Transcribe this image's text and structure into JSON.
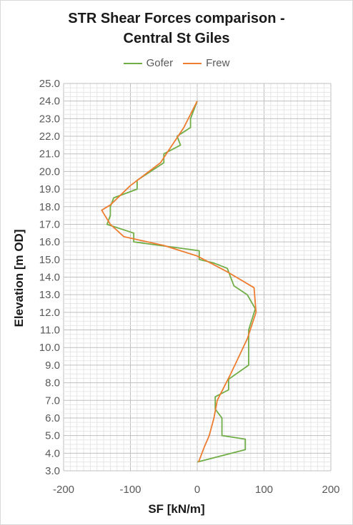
{
  "chart_data": {
    "type": "line",
    "title_line1": "STR Shear Forces comparison -",
    "title_line2": "Central St Giles",
    "xlabel": "SF [kN/m]",
    "ylabel": "Elevation [m OD]",
    "xlim": [
      -200,
      200
    ],
    "ylim": [
      3.0,
      25.0
    ],
    "x_ticks": [
      "-200",
      "-100",
      "0",
      "100",
      "200"
    ],
    "y_ticks": [
      "3.0",
      "4.0",
      "5.0",
      "6.0",
      "7.0",
      "8.0",
      "9.0",
      "10.0",
      "11.0",
      "12.0",
      "13.0",
      "14.0",
      "15.0",
      "16.0",
      "17.0",
      "18.0",
      "19.0",
      "20.0",
      "21.0",
      "22.0",
      "23.0",
      "24.0",
      "25.0"
    ],
    "grid": true,
    "legend_position": "top",
    "series": [
      {
        "name": "Gofer",
        "color": "#70ad47",
        "points": [
          [
            0,
            24.0
          ],
          [
            -10,
            23.0
          ],
          [
            -10,
            22.5
          ],
          [
            -30,
            22.0
          ],
          [
            -25,
            21.5
          ],
          [
            -50,
            21.0
          ],
          [
            -50,
            20.5
          ],
          [
            -90,
            19.5
          ],
          [
            -90,
            19.0
          ],
          [
            -125,
            18.5
          ],
          [
            -130,
            18.0
          ],
          [
            -130,
            17.5
          ],
          [
            -135,
            17.0
          ],
          [
            -95,
            16.5
          ],
          [
            -95,
            16.0
          ],
          [
            3,
            15.5
          ],
          [
            3,
            15.0
          ],
          [
            25,
            14.8
          ],
          [
            45,
            14.5
          ],
          [
            55,
            13.5
          ],
          [
            75,
            13.0
          ],
          [
            87,
            12.2
          ],
          [
            77,
            11.0
          ],
          [
            77,
            9.0
          ],
          [
            47,
            8.2
          ],
          [
            47,
            7.6
          ],
          [
            27,
            7.2
          ],
          [
            27,
            6.5
          ],
          [
            37,
            6.0
          ],
          [
            37,
            5.0
          ],
          [
            72,
            4.8
          ],
          [
            72,
            4.2
          ],
          [
            0,
            3.5
          ]
        ]
      },
      {
        "name": "Frew",
        "color": "#ed7d31",
        "points": [
          [
            0,
            24.0
          ],
          [
            -20,
            22.5
          ],
          [
            -55,
            20.5
          ],
          [
            -100,
            19.2
          ],
          [
            -130,
            18.1
          ],
          [
            -143,
            17.8
          ],
          [
            -130,
            17.0
          ],
          [
            -110,
            16.3
          ],
          [
            -50,
            15.8
          ],
          [
            0,
            15.2
          ],
          [
            45,
            14.3
          ],
          [
            85,
            13.4
          ],
          [
            88,
            12.0
          ],
          [
            75,
            10.5
          ],
          [
            50,
            8.5
          ],
          [
            30,
            7.0
          ],
          [
            25,
            6.0
          ],
          [
            18,
            5.0
          ],
          [
            10,
            4.3
          ],
          [
            2,
            3.5
          ]
        ]
      }
    ]
  }
}
